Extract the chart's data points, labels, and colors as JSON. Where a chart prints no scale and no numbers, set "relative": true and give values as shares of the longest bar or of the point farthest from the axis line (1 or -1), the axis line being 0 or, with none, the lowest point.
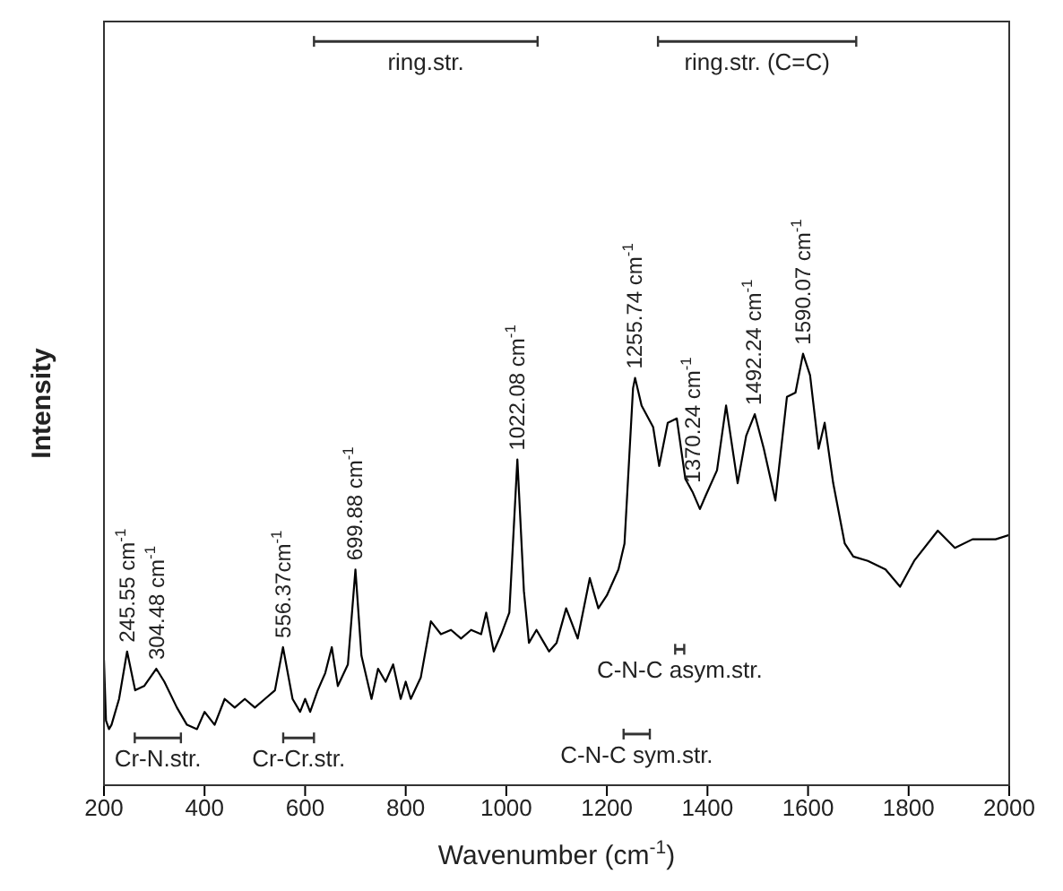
{
  "chart_data": {
    "type": "line",
    "relative": true,
    "xlabel": "Wavenumber (cm$^{-1}$)",
    "ylabel": "Intensity",
    "xlim": [
      200,
      2000
    ],
    "xticks": [
      200,
      400,
      600,
      800,
      1000,
      1200,
      1400,
      1600,
      1800,
      2000
    ],
    "marker": "none",
    "line_style": "solid",
    "x": [
      200,
      204,
      210,
      215,
      230,
      246,
      262,
      280,
      304,
      320,
      345,
      365,
      385,
      400,
      420,
      440,
      460,
      480,
      500,
      520,
      540,
      556,
      575,
      590,
      600,
      610,
      625,
      640,
      653,
      665,
      685,
      700,
      712,
      732,
      745,
      760,
      775,
      790,
      800,
      810,
      830,
      850,
      870,
      890,
      910,
      930,
      950,
      960,
      975,
      990,
      1006,
      1022,
      1035,
      1045,
      1060,
      1075,
      1085,
      1100,
      1119,
      1142,
      1166,
      1183,
      1200,
      1223,
      1235,
      1252,
      1256,
      1269,
      1292,
      1304,
      1321,
      1339,
      1356,
      1370.24,
      1385,
      1396,
      1419,
      1437,
      1460,
      1477,
      1494,
      1512,
      1535,
      1558,
      1575,
      1590,
      1604,
      1621,
      1633,
      1650,
      1673,
      1690,
      1719,
      1754,
      1783,
      1811,
      1858,
      1892,
      1927,
      1973,
      2000
    ],
    "series": [
      {
        "color": "#000000",
        "values": [
          0.29,
          0.15,
          0.13,
          0.14,
          0.2,
          0.31,
          0.22,
          0.23,
          0.27,
          0.24,
          0.18,
          0.14,
          0.13,
          0.17,
          0.14,
          0.2,
          0.18,
          0.2,
          0.18,
          0.2,
          0.22,
          0.32,
          0.2,
          0.17,
          0.2,
          0.17,
          0.22,
          0.26,
          0.32,
          0.23,
          0.28,
          0.5,
          0.3,
          0.2,
          0.27,
          0.24,
          0.28,
          0.2,
          0.24,
          0.2,
          0.25,
          0.38,
          0.35,
          0.36,
          0.34,
          0.36,
          0.35,
          0.4,
          0.31,
          0.35,
          0.4,
          0.755,
          0.45,
          0.33,
          0.36,
          0.33,
          0.31,
          0.33,
          0.41,
          0.34,
          0.48,
          0.41,
          0.44,
          0.5,
          0.56,
          0.92,
          0.944,
          0.88,
          0.83,
          0.74,
          0.84,
          0.85,
          0.71,
          0.68,
          0.64,
          0.67,
          0.73,
          0.88,
          0.7,
          0.81,
          0.86,
          0.78,
          0.66,
          0.9,
          0.91,
          1.0,
          0.95,
          0.78,
          0.84,
          0.7,
          0.56,
          0.53,
          0.52,
          0.5,
          0.46,
          0.52,
          0.59,
          0.55,
          0.57,
          0.57,
          0.58
        ]
      }
    ],
    "annotations": [
      {
        "text": "245.55 cm$^{-1}$",
        "x": 245.55,
        "y": 0.31
      },
      {
        "text": "304.48 cm$^{-1}$",
        "x": 304.48,
        "y": 0.27
      },
      {
        "text": "556.37cm$^{-1}$",
        "x": 556.37,
        "y": 0.32
      },
      {
        "text": "699.88 cm$^{-1}$",
        "x": 699.88,
        "y": 0.5
      },
      {
        "text": "1022.08 cm$^{-1}$",
        "x": 1022.08,
        "y": 0.755
      },
      {
        "text": "1255.74 cm$^{-1}$",
        "x": 1255.74,
        "y": 0.944
      },
      {
        "text": "1370.24 cm$^{-1}$",
        "x": 1370.24,
        "y": 0.68
      },
      {
        "text": "1492.24 cm$^{-1}$",
        "x": 1492.24,
        "y": 0.86
      },
      {
        "text": "1590.07 cm$^{-1}$",
        "x": 1590.07,
        "y": 1.0
      },
      "ring.str.",
      "ring.str. (C=C)",
      "Cr-N.str.",
      "Cr-Cr.str.",
      "C-N-C asym.str.",
      "C-N-C sym.str."
    ]
  }
}
